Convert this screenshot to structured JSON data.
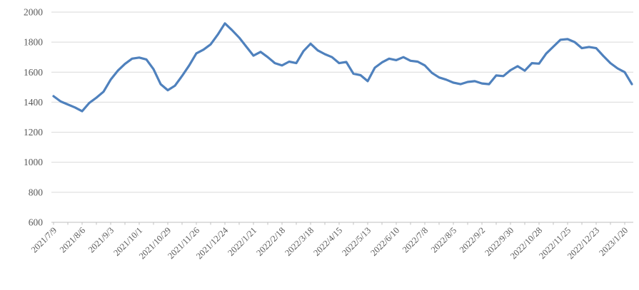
{
  "chart_data": {
    "type": "line",
    "title": "",
    "legend": "none",
    "grid": "horizontal",
    "ylim": [
      600,
      2000
    ],
    "y_tick_step": 200,
    "y_tick_labels": [
      "600",
      "800",
      "1000",
      "1200",
      "1400",
      "1600",
      "1800",
      "2000"
    ],
    "x_tick_labels": [
      "2021/7/9",
      "2021/8/6",
      "2021/9/3",
      "2021/10/1",
      "2021/10/29",
      "2021/11/26",
      "2021/12/24",
      "2022/1/21",
      "2022/2/18",
      "2022/3/18",
      "2022/4/15",
      "2022/5/13",
      "2022/6/10",
      "2022/7/8",
      "2022/8/5",
      "2022/9/2",
      "2022/9/30",
      "2022/10/28",
      "2022/11/25",
      "2022/12/23",
      "2023/1/20"
    ],
    "label_interval_points": 4,
    "tick_interval_points": 2,
    "x_frequency": "weekly",
    "values": [
      1440,
      1405,
      1385,
      1365,
      1340,
      1395,
      1430,
      1470,
      1550,
      1610,
      1655,
      1690,
      1697,
      1685,
      1620,
      1520,
      1480,
      1510,
      1575,
      1645,
      1725,
      1750,
      1785,
      1850,
      1925,
      1880,
      1830,
      1770,
      1710,
      1735,
      1700,
      1660,
      1645,
      1670,
      1660,
      1740,
      1790,
      1745,
      1720,
      1700,
      1660,
      1668,
      1590,
      1580,
      1540,
      1630,
      1665,
      1690,
      1680,
      1700,
      1676,
      1670,
      1645,
      1595,
      1565,
      1550,
      1530,
      1520,
      1535,
      1540,
      1525,
      1520,
      1578,
      1574,
      1613,
      1640,
      1610,
      1660,
      1657,
      1724,
      1770,
      1816,
      1820,
      1800,
      1760,
      1768,
      1760,
      1708,
      1660,
      1625,
      1600,
      1520
    ],
    "series_color": "#4F81BD",
    "gridline_color": "#D9D9D9",
    "axis_line_color": "#BFBFBF",
    "label_color": "#595959"
  }
}
